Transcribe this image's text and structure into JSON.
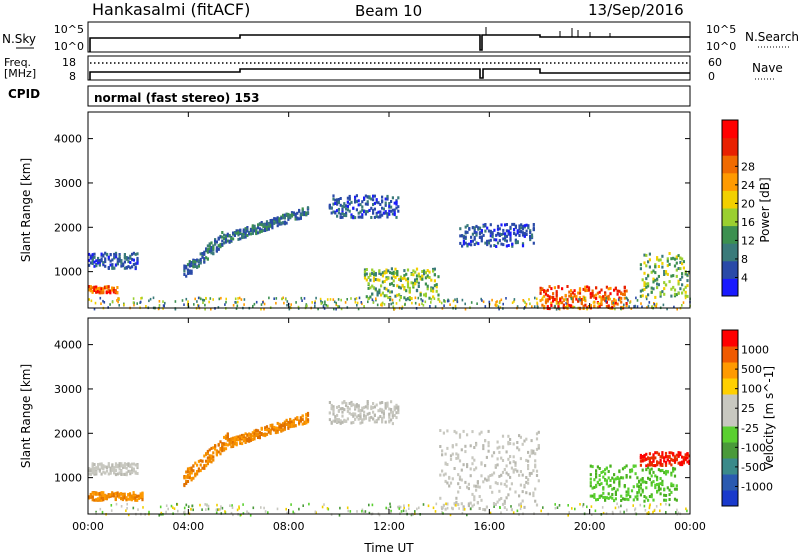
{
  "header": {
    "station": "Hankasalmi (fitACF)",
    "beam": "Beam 10",
    "date": "13/Sep/2016",
    "cpid_label": "CPID",
    "cpid_text": "normal (fast stereo) 153"
  },
  "nsky_panel": {
    "left_label": "N.Sky",
    "right_label": "N.Search",
    "left_ticks": [
      "10^5",
      "10^0"
    ],
    "right_ticks": [
      "10^5",
      "10^0"
    ]
  },
  "freq_panel": {
    "left_label_1": "Freq.",
    "left_label_2": "[MHz]",
    "right_label": "Nave",
    "left_ticks": [
      "18",
      "8"
    ],
    "right_ticks": [
      "60",
      "0"
    ]
  },
  "chart_data": [
    {
      "type": "heatmap",
      "name": "power",
      "xlabel": "",
      "ylabel": "Slant Range [km]",
      "xlim": [
        0,
        24
      ],
      "ylim": [
        180,
        4600
      ],
      "yticks": [
        "1000",
        "2000",
        "3000",
        "4000"
      ],
      "colorbar_label": "Power [dB]",
      "colorbar_ticks": [
        "4",
        "8",
        "12",
        "16",
        "20",
        "24",
        "28"
      ],
      "colorbar_colors": [
        "#1a1aff",
        "#2a4aa8",
        "#3a7a7a",
        "#3c9050",
        "#9ad030",
        "#f2d000",
        "#ff9a00",
        "#f06a00",
        "#e82000",
        "#ff0000"
      ],
      "features": [
        {
          "t": [
            0,
            2
          ],
          "r": [
            1100,
            1450
          ],
          "level": "blue"
        },
        {
          "t": [
            0,
            1.2
          ],
          "r": [
            550,
            700
          ],
          "level": "red"
        },
        {
          "t": [
            3.8,
            5.6
          ],
          "r": [
            1000,
            1900
          ],
          "level": "blue-green"
        },
        {
          "t": [
            5.6,
            8.8
          ],
          "r": [
            1800,
            2400
          ],
          "level": "blue-green"
        },
        {
          "t": [
            9.6,
            12.4
          ],
          "r": [
            2250,
            2750
          ],
          "level": "blue"
        },
        {
          "t": [
            11,
            14
          ],
          "r": [
            400,
            1100
          ],
          "level": "green"
        },
        {
          "t": [
            14.8,
            17.8
          ],
          "r": [
            1600,
            2100
          ],
          "level": "blue"
        },
        {
          "t": [
            18,
            21.5
          ],
          "r": [
            200,
            700
          ],
          "level": "red"
        },
        {
          "t": [
            22,
            24
          ],
          "r": [
            450,
            1450
          ],
          "level": "green"
        }
      ]
    },
    {
      "type": "heatmap",
      "name": "velocity",
      "xlabel": "Time UT",
      "ylabel": "Slant Range [km]",
      "xlim": [
        0,
        24
      ],
      "ylim": [
        180,
        4600
      ],
      "xticks": [
        "00:00",
        "04:00",
        "08:00",
        "12:00",
        "16:00",
        "20:00",
        "00:00"
      ],
      "yticks": [
        "1000",
        "2000",
        "3000",
        "4000"
      ],
      "colorbar_label": "Velocity [m s^-1]",
      "colorbar_ticks": [
        "1000",
        "500",
        "100",
        "25",
        "-25",
        "-100",
        "-500",
        "-1000"
      ],
      "colorbar_colors": [
        "#1a3acc",
        "#2a5ab0",
        "#3a8a8a",
        "#4a9a3a",
        "#5ad030",
        "#c8c8c0",
        "#c8c8c0",
        "#ffd000",
        "#ff9a00",
        "#f05a00",
        "#ff0000"
      ],
      "features": [
        {
          "t": [
            0,
            2
          ],
          "r": [
            1100,
            1350
          ],
          "level": "gray"
        },
        {
          "t": [
            0,
            2.2
          ],
          "r": [
            520,
            700
          ],
          "level": "orange"
        },
        {
          "t": [
            3.8,
            5.6
          ],
          "r": [
            1000,
            1900
          ],
          "level": "orange"
        },
        {
          "t": [
            5.6,
            8.8
          ],
          "r": [
            1800,
            2400
          ],
          "level": "orange"
        },
        {
          "t": [
            9.6,
            12.4
          ],
          "r": [
            2250,
            2750
          ],
          "level": "gray"
        },
        {
          "t": [
            14,
            18
          ],
          "r": [
            300,
            2100
          ],
          "level": "gray"
        },
        {
          "t": [
            20,
            23.5
          ],
          "r": [
            500,
            1300
          ],
          "level": "green"
        },
        {
          "t": [
            22,
            24
          ],
          "r": [
            1300,
            1600
          ],
          "level": "red"
        }
      ]
    }
  ]
}
